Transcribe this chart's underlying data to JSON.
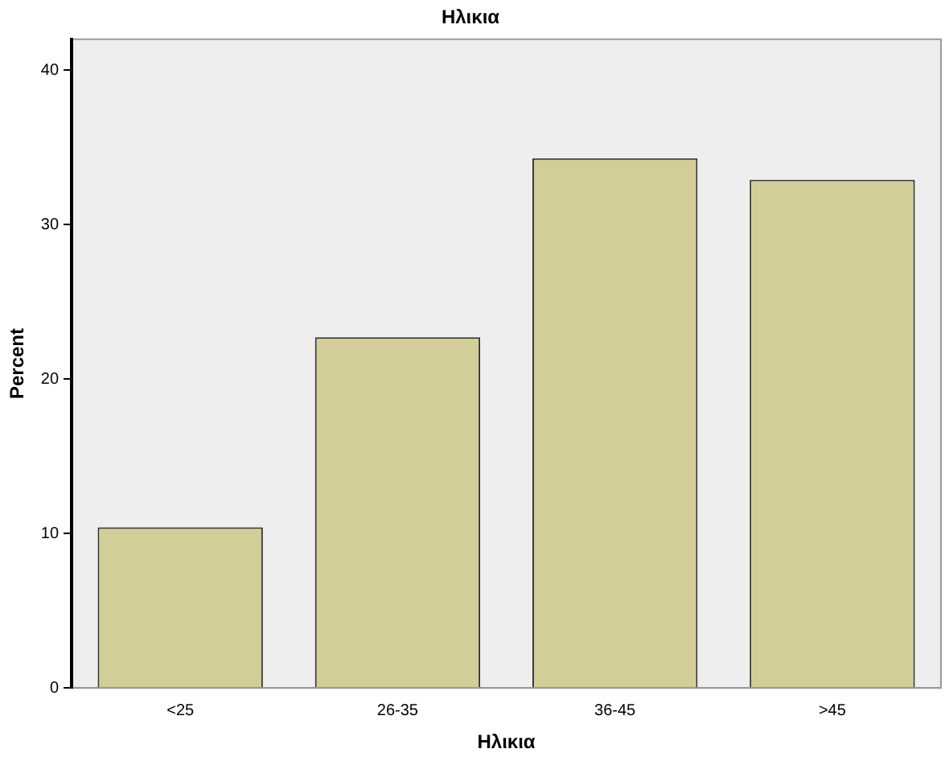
{
  "chart_data": {
    "type": "bar",
    "title": "Ηλικια",
    "xlabel": "Ηλικια",
    "ylabel": "Percent",
    "categories": [
      "<25",
      "26-35",
      "36-45",
      ">45"
    ],
    "values": [
      10.4,
      22.7,
      34.3,
      32.9
    ],
    "color": "#d3ce97",
    "ylim": [
      0,
      42
    ],
    "yticks": [
      0,
      10,
      20,
      30,
      40
    ],
    "grid": false,
    "legend": false
  }
}
